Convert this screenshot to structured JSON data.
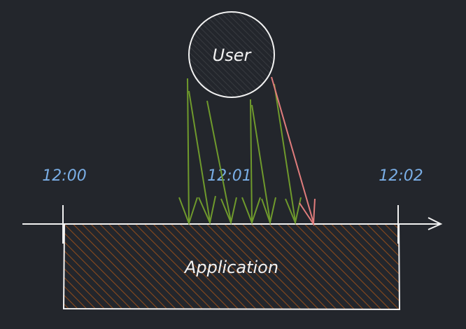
{
  "diagram": {
    "user_label": "User",
    "application_label": "Application",
    "timeline": {
      "labels": [
        "12:00",
        "12:01",
        "12:02"
      ]
    },
    "colors": {
      "background": "#23262c",
      "stroke": "#f2f2f2",
      "time_label": "#7aaee6",
      "allowed_request": "#6f9a2c",
      "rejected_request": "#e07c7c",
      "application_hatch": "#8a4a1c"
    }
  }
}
